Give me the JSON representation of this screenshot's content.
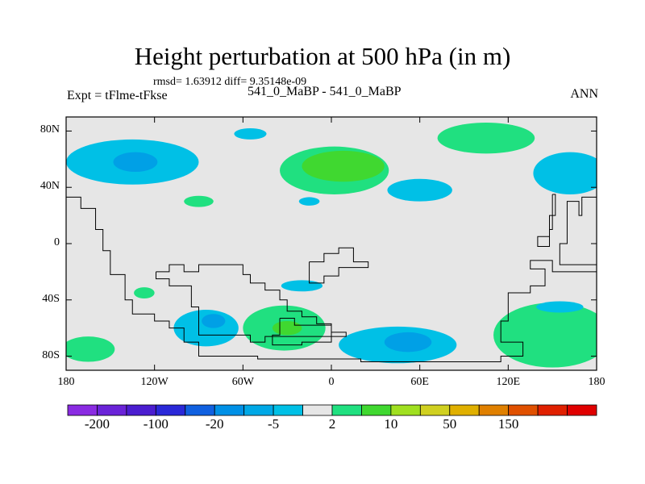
{
  "title": "Height perturbation at 500 hPa (in m)",
  "rmsd_text": "rmsd= 1.63912 diff= 9.35148e-09",
  "experiment": "Expt = tFlme-tFkse",
  "case_label": "541_0_MaBP - 541_0_MaBP",
  "season": "ANN",
  "map": {
    "projection": "cylindrical equidistant",
    "lon_range": [
      -180,
      180
    ],
    "lat_range": [
      -90,
      90
    ],
    "y_ticks": [
      {
        "label": "80N",
        "lat": 80
      },
      {
        "label": "40N",
        "lat": 40
      },
      {
        "label": "0",
        "lat": 0
      },
      {
        "label": "40S",
        "lat": -40
      },
      {
        "label": "80S",
        "lat": -80
      }
    ],
    "x_ticks": [
      {
        "label": "180",
        "lon": -180
      },
      {
        "label": "120W",
        "lon": -120
      },
      {
        "label": "60W",
        "lon": -60
      },
      {
        "label": "0",
        "lon": 0
      },
      {
        "label": "60E",
        "lon": 60
      },
      {
        "label": "120E",
        "lon": 120
      },
      {
        "label": "180",
        "lon": 180
      }
    ],
    "background_color": "#e6e6e6",
    "anomalies": [
      {
        "lon": -135,
        "lat": 58,
        "rx": 45,
        "ry": 16,
        "level": -5,
        "color": "#00c0e6"
      },
      {
        "lon": -133,
        "lat": 58,
        "rx": 15,
        "ry": 7,
        "level": -20,
        "color": "#00a0e6"
      },
      {
        "lon": -55,
        "lat": 78,
        "rx": 11,
        "ry": 4,
        "level": -5,
        "color": "#00c0e6"
      },
      {
        "lon": -90,
        "lat": 30,
        "rx": 10,
        "ry": 4,
        "level": 2,
        "color": "#20e080"
      },
      {
        "lon": 2,
        "lat": 52,
        "rx": 37,
        "ry": 17,
        "level": 2,
        "color": "#20e080"
      },
      {
        "lon": 8,
        "lat": 55,
        "rx": 28,
        "ry": 11,
        "level": 10,
        "color": "#40d830"
      },
      {
        "lon": -15,
        "lat": 30,
        "rx": 7,
        "ry": 3,
        "level": -5,
        "color": "#00c0e6"
      },
      {
        "lon": 60,
        "lat": 38,
        "rx": 22,
        "ry": 8,
        "level": -5,
        "color": "#00c0e6"
      },
      {
        "lon": 105,
        "lat": 75,
        "rx": 33,
        "ry": 11,
        "level": 2,
        "color": "#20e080"
      },
      {
        "lon": 162,
        "lat": 50,
        "rx": 25,
        "ry": 15,
        "level": -5,
        "color": "#00c0e6"
      },
      {
        "lon": -127,
        "lat": -35,
        "rx": 7,
        "ry": 4,
        "level": 2,
        "color": "#20e080"
      },
      {
        "lon": -20,
        "lat": -30,
        "rx": 14,
        "ry": 4,
        "level": -5,
        "color": "#00c0e6"
      },
      {
        "lon": -85,
        "lat": -60,
        "rx": 22,
        "ry": 13,
        "level": -5,
        "color": "#00c0e6"
      },
      {
        "lon": -80,
        "lat": -55,
        "rx": 8,
        "ry": 5,
        "level": -20,
        "color": "#00a0e6"
      },
      {
        "lon": -32,
        "lat": -60,
        "rx": 28,
        "ry": 16,
        "level": 2,
        "color": "#20e080"
      },
      {
        "lon": -30,
        "lat": -60,
        "rx": 10,
        "ry": 5,
        "level": 10,
        "color": "#40d830"
      },
      {
        "lon": 45,
        "lat": -72,
        "rx": 40,
        "ry": 13,
        "level": -5,
        "color": "#00c0e6"
      },
      {
        "lon": 52,
        "lat": -70,
        "rx": 16,
        "ry": 7,
        "level": -20,
        "color": "#00a0e6"
      },
      {
        "lon": 150,
        "lat": -65,
        "rx": 40,
        "ry": 23,
        "level": 2,
        "color": "#20e080"
      },
      {
        "lon": 155,
        "lat": -45,
        "rx": 16,
        "ry": 4,
        "level": -5,
        "color": "#00c0e6"
      },
      {
        "lon": -165,
        "lat": -75,
        "rx": 18,
        "ry": 9,
        "level": 2,
        "color": "#20e080"
      }
    ],
    "coastlines": [
      [
        [
          -180,
          33
        ],
        [
          -170,
          33
        ],
        [
          -170,
          25
        ],
        [
          -160,
          25
        ],
        [
          -160,
          10
        ],
        [
          -155,
          10
        ],
        [
          -155,
          -5
        ],
        [
          -150,
          -5
        ],
        [
          -150,
          -22
        ],
        [
          -140,
          -22
        ],
        [
          -140,
          -40
        ],
        [
          -135,
          -40
        ],
        [
          -135,
          -50
        ],
        [
          -120,
          -50
        ],
        [
          -120,
          -55
        ],
        [
          -110,
          -55
        ],
        [
          -110,
          -60
        ],
        [
          -100,
          -60
        ],
        [
          -100,
          -70
        ],
        [
          -90,
          -70
        ],
        [
          -90,
          -80
        ],
        [
          -50,
          -80
        ],
        [
          -50,
          -82
        ],
        [
          20,
          -82
        ],
        [
          20,
          -84
        ],
        [
          115,
          -84
        ],
        [
          115,
          -80
        ],
        [
          130,
          -80
        ],
        [
          130,
          -70
        ],
        [
          115,
          -70
        ],
        [
          115,
          -55
        ],
        [
          120,
          -55
        ],
        [
          120,
          -35
        ],
        [
          135,
          -35
        ],
        [
          135,
          -30
        ],
        [
          145,
          -30
        ],
        [
          145,
          -18
        ],
        [
          135,
          -18
        ],
        [
          135,
          -12
        ],
        [
          150,
          -12
        ],
        [
          150,
          -20
        ],
        [
          180,
          -20
        ]
      ],
      [
        [
          -119,
          -20
        ],
        [
          -110,
          -20
        ],
        [
          -110,
          -15
        ],
        [
          -100,
          -15
        ],
        [
          -100,
          -20
        ],
        [
          -90,
          -20
        ],
        [
          -90,
          -15
        ],
        [
          -60,
          -15
        ],
        [
          -60,
          -22
        ],
        [
          -55,
          -22
        ],
        [
          -55,
          -28
        ],
        [
          -45,
          -28
        ],
        [
          -45,
          -33
        ],
        [
          -35,
          -33
        ],
        [
          -35,
          -40
        ],
        [
          -30,
          -40
        ],
        [
          -30,
          -48
        ],
        [
          -20,
          -48
        ],
        [
          -20,
          -52
        ],
        [
          -10,
          -52
        ],
        [
          -10,
          -57
        ],
        [
          0,
          -57
        ],
        [
          0,
          -63
        ],
        [
          10,
          -63
        ],
        [
          10,
          -66
        ],
        [
          -45,
          -66
        ],
        [
          -45,
          -70
        ],
        [
          -55,
          -70
        ],
        [
          -55,
          -65
        ],
        [
          -90,
          -65
        ],
        [
          -90,
          -45
        ],
        [
          -95,
          -45
        ],
        [
          -95,
          -30
        ],
        [
          -110,
          -30
        ],
        [
          -110,
          -25
        ],
        [
          -119,
          -25
        ],
        [
          -119,
          -20
        ]
      ],
      [
        [
          -35,
          -53
        ],
        [
          -25,
          -53
        ],
        [
          -25,
          -58
        ],
        [
          0,
          -58
        ],
        [
          0,
          -70
        ],
        [
          -20,
          -70
        ],
        [
          -20,
          -72
        ],
        [
          -40,
          -72
        ],
        [
          -40,
          -65
        ],
        [
          -35,
          -65
        ],
        [
          -35,
          -53
        ]
      ],
      [
        [
          -15,
          -13
        ],
        [
          -5,
          -13
        ],
        [
          -5,
          -7
        ],
        [
          5,
          -7
        ],
        [
          5,
          -3
        ],
        [
          15,
          -3
        ],
        [
          15,
          -13
        ],
        [
          25,
          -13
        ],
        [
          25,
          -17
        ],
        [
          5,
          -17
        ],
        [
          5,
          -23
        ],
        [
          -5,
          -23
        ],
        [
          -5,
          -28
        ],
        [
          -15,
          -28
        ],
        [
          -15,
          -13
        ]
      ],
      [
        [
          180,
          33
        ],
        [
          170,
          33
        ],
        [
          170,
          20
        ],
        [
          168,
          20
        ],
        [
          168,
          30
        ],
        [
          160,
          30
        ],
        [
          160,
          0
        ],
        [
          155,
          0
        ],
        [
          155,
          -15
        ],
        [
          180,
          -15
        ]
      ],
      [
        [
          150,
          35
        ],
        [
          152,
          35
        ],
        [
          152,
          20
        ],
        [
          148,
          20
        ],
        [
          148,
          5
        ],
        [
          140,
          5
        ],
        [
          140,
          -2
        ],
        [
          148,
          -2
        ],
        [
          148,
          10
        ],
        [
          150,
          10
        ],
        [
          150,
          35
        ]
      ]
    ]
  },
  "colorbar": {
    "colors": [
      "#8a2be2",
      "#6a23d8",
      "#4b1dd0",
      "#2a28d8",
      "#1060e0",
      "#0090e6",
      "#00a8e6",
      "#00c0e6",
      "#e6e6e6",
      "#20e080",
      "#40d830",
      "#a0e020",
      "#d0d020",
      "#e0b000",
      "#e08000",
      "#e05000",
      "#e02000",
      "#e00000"
    ],
    "labels": [
      "-200",
      "-100",
      "-20",
      "-5",
      "2",
      "10",
      "50",
      "150"
    ]
  }
}
